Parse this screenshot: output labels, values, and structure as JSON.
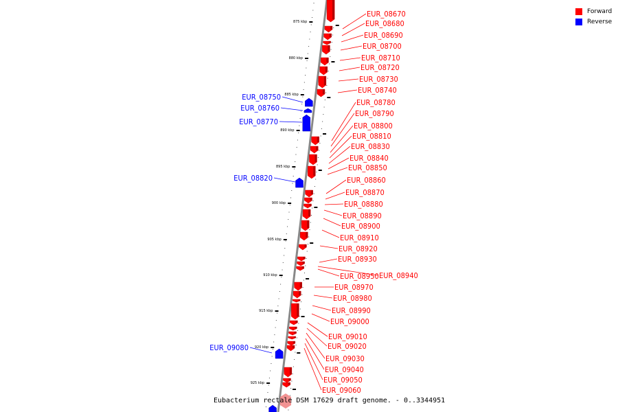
{
  "caption": "Eubacterium rectale DSM 17629 draft genome. - 0..3344951",
  "legend": [
    {
      "label": "Forward",
      "color": "#ff0000"
    },
    {
      "label": "Reverse",
      "color": "#0000ff"
    }
  ],
  "colors": {
    "forward": "#ff0000",
    "reverse": "#0000ff",
    "backbone": "#808080"
  },
  "ticks": [
    "875 kbp",
    "880 kbp",
    "885 kbp",
    "890 kbp",
    "895 kbp",
    "900 kbp",
    "905 kbp",
    "910 kbp",
    "915 kbp",
    "920 kbp",
    "925 kbp"
  ],
  "forward_genes": [
    "EUR_08670",
    "EUR_08680",
    "EUR_08690",
    "EUR_08700",
    "EUR_08710",
    "EUR_08720",
    "EUR_08730",
    "EUR_08740",
    "EUR_08780",
    "EUR_08790",
    "EUR_08800",
    "EUR_08810",
    "EUR_08830",
    "EUR_08840",
    "EUR_08850",
    "EUR_08860",
    "EUR_08870",
    "EUR_08880",
    "EUR_08890",
    "EUR_08900",
    "EUR_08910",
    "EUR_08920",
    "EUR_08930",
    "EUR_08940",
    "EUR_08950",
    "EUR_08970",
    "EUR_08980",
    "EUR_08990",
    "EUR_09000",
    "EUR_09010",
    "EUR_09020",
    "EUR_09030",
    "EUR_09040",
    "EUR_09050",
    "EUR_09060"
  ],
  "reverse_genes": [
    "EUR_08750",
    "EUR_08760",
    "EUR_08770",
    "EUR_08820",
    "EUR_09080"
  ]
}
